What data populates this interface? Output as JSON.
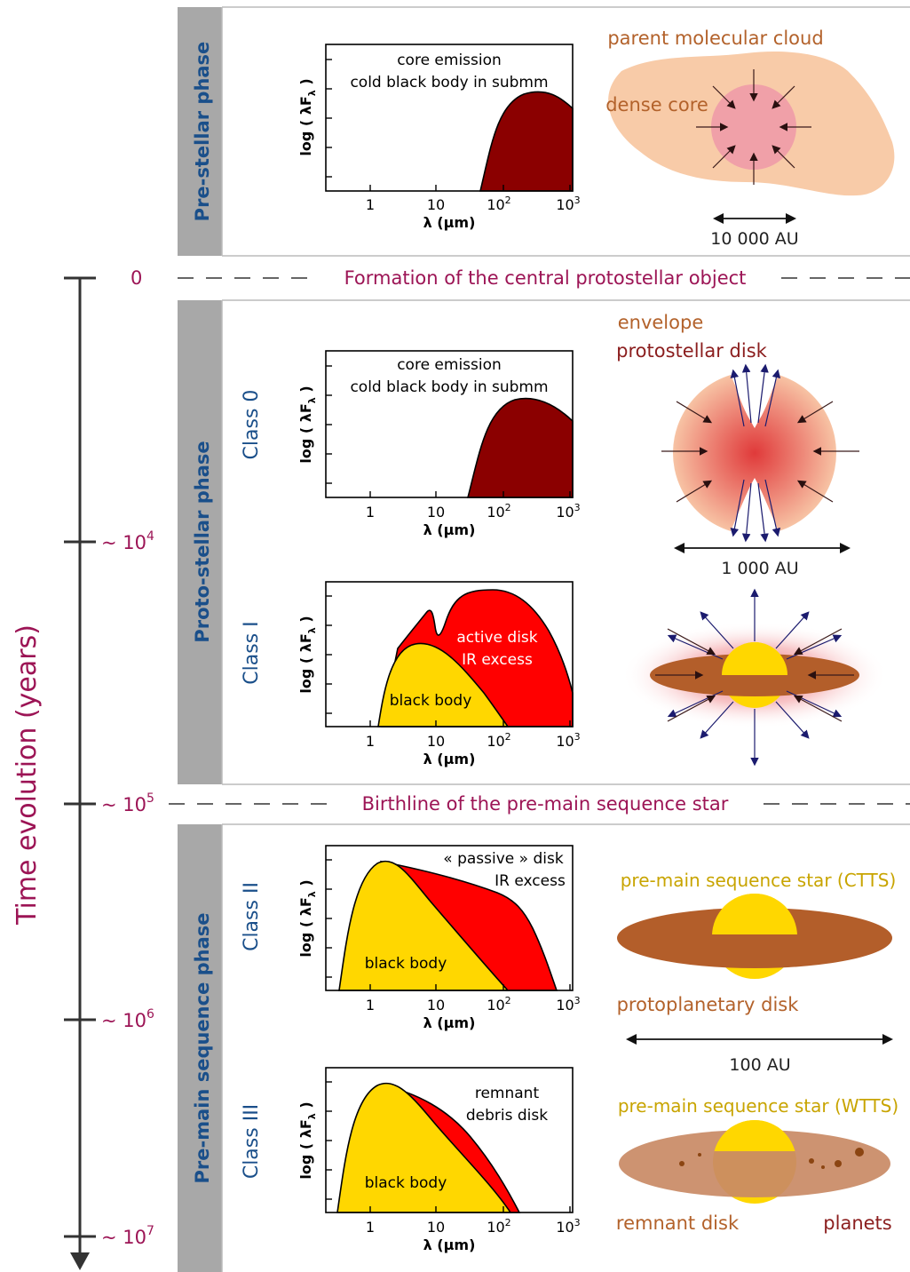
{
  "colors": {
    "phase_bar": "#a8a8a8",
    "time_color": "#9c1455",
    "class_color": "#1a4f8a",
    "cold_bb": "#8b0000",
    "red_excess": "#ff0000",
    "yellow_bb": "#ffd700",
    "cloud": "#f8cba8",
    "core": "#f0a0a8",
    "disk_brown": "#b35e2a",
    "remnant_disk": "#c98a65",
    "tan_text": "#b3622b"
  },
  "timeline": {
    "axis_title": "Time evolution (years)",
    "tick_0": "0",
    "tick_1e4_base": "~ 10",
    "tick_1e4_exp": "4",
    "tick_1e5_base": "~ 10",
    "tick_1e5_exp": "5",
    "tick_1e6_base": "~ 10",
    "tick_1e6_exp": "6",
    "tick_1e7_base": "~ 10",
    "tick_1e7_exp": "7"
  },
  "events": {
    "formation": "Formation of the central protostellar object",
    "birthline": "Birthline of the pre-main sequence star"
  },
  "phases": {
    "prestellar": "Pre-stellar phase",
    "protostellar": "Proto-stellar phase",
    "premain": "Pre-main sequence phase"
  },
  "classes": {
    "class0": "Class 0",
    "class1": "Class I",
    "class2": "Class II",
    "class3": "Class III"
  },
  "plot_common": {
    "ylabel_prefix": "log ( λF",
    "ylabel_sub": "λ",
    "ylabel_suffix": " )",
    "xlabel": "λ (µm)",
    "xtick_1": "1",
    "xtick_10": "10",
    "xtick_100_base": "10",
    "xtick_100_exp": "2",
    "xtick_1000_base": "10",
    "xtick_1000_exp": "3"
  },
  "chart_data": [
    {
      "type": "area",
      "name_id": "prestellar-sed",
      "x_scale": "log",
      "xlim": [
        0.3,
        1000
      ],
      "annotations": [
        "core emission",
        "cold black body in submm"
      ],
      "series": [
        {
          "label": "",
          "peak_um": 300
        }
      ]
    },
    {
      "type": "area",
      "name_id": "class0-sed",
      "x_scale": "log",
      "xlim": [
        0.3,
        1000
      ],
      "annotations": [
        "core emission",
        "cold black body in submm"
      ],
      "series": [
        {
          "label": "",
          "peak_um": 150
        }
      ]
    },
    {
      "type": "area",
      "name_id": "class1-sed",
      "x_scale": "log",
      "xlim": [
        0.3,
        1000
      ],
      "annotations": [
        "active disk",
        "IR excess",
        "black body"
      ],
      "series": [
        {
          "label": "black body",
          "peak_um": 4
        },
        {
          "label": "active disk IR excess",
          "peak_um": 60
        }
      ]
    },
    {
      "type": "area",
      "name_id": "class2-sed",
      "x_scale": "log",
      "xlim": [
        0.3,
        1000
      ],
      "annotations": [
        "« passive » disk",
        "IR excess",
        "black body"
      ],
      "series": [
        {
          "label": "black body",
          "peak_um": 2
        },
        {
          "label": "« passive » disk IR excess",
          "peak_um": 2
        }
      ]
    },
    {
      "type": "area",
      "name_id": "class3-sed",
      "x_scale": "log",
      "xlim": [
        0.3,
        1000
      ],
      "annotations": [
        "remnant",
        "debris disk",
        "black body"
      ],
      "series": [
        {
          "label": "black body",
          "peak_um": 2
        },
        {
          "label": "remnant debris disk",
          "peak_um": 2
        }
      ]
    }
  ],
  "text": {
    "core_emission": "core emission",
    "cold_bb": "cold black body in submm",
    "active_disk": "active disk",
    "ir_excess": "IR excess",
    "black_body": "black body",
    "passive_disk": "« passive » disk",
    "remnant": "remnant",
    "debris_disk": "debris disk"
  },
  "illustrations": {
    "parent_cloud": "parent molecular cloud",
    "dense_core": "dense core",
    "scale_10000": "10 000 AU",
    "envelope": "envelope",
    "protostellar_disk": "protostellar disk",
    "scale_1000": "1 000 AU",
    "ctts": "pre-main sequence star (CTTS)",
    "protoplanetary_disk": "protoplanetary disk",
    "scale_100": "100 AU",
    "wtts": "pre-main sequence star (WTTS)",
    "remnant_disk": "remnant disk",
    "planets": "planets"
  }
}
